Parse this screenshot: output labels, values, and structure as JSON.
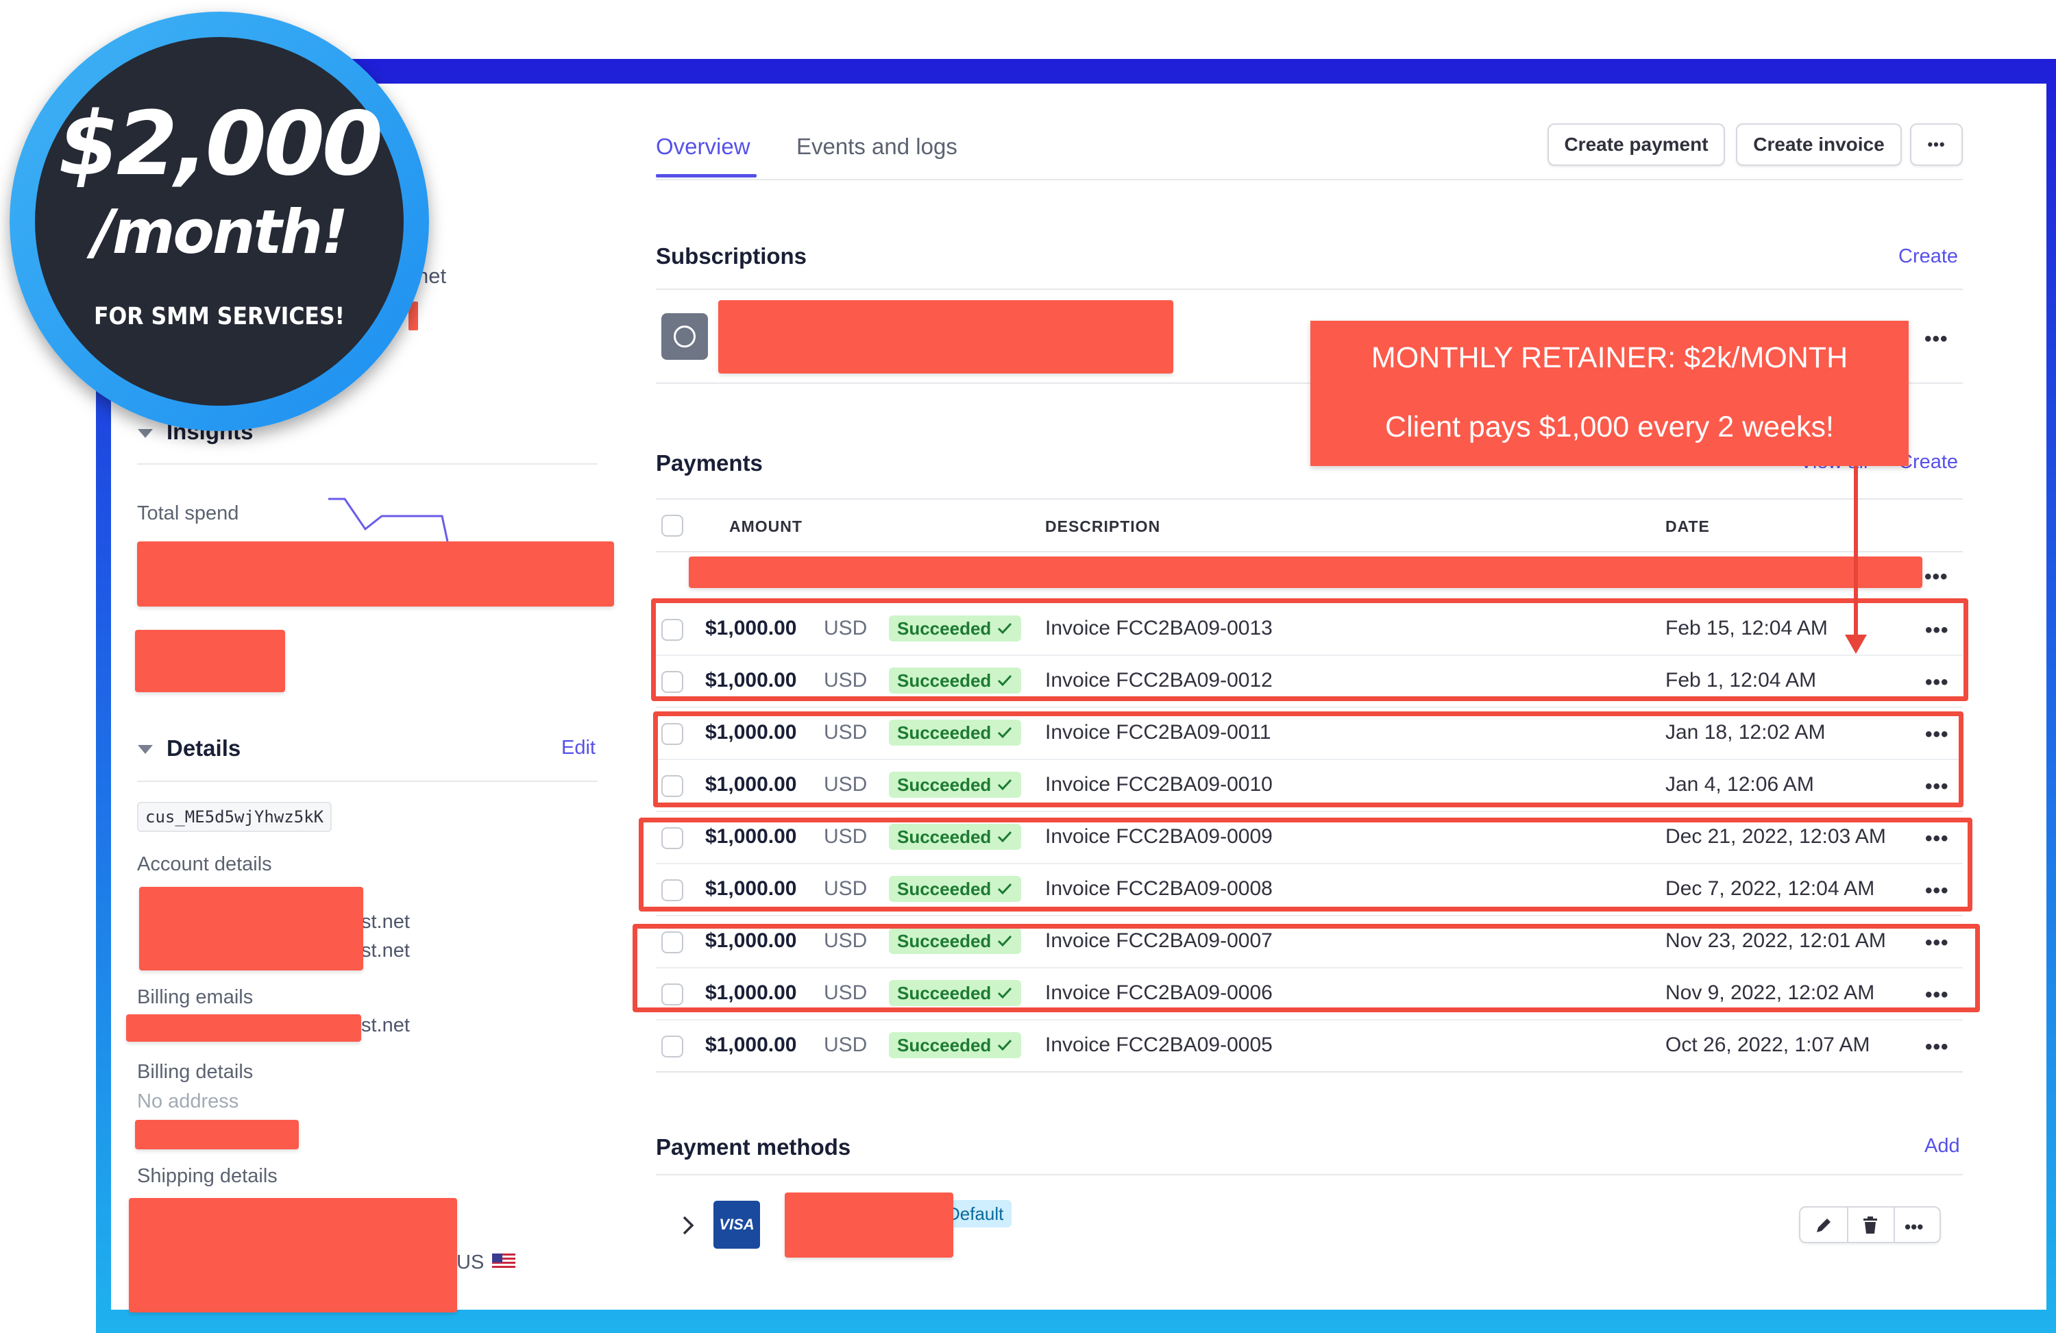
{
  "promo": {
    "amount": "$2,000",
    "period": "/month!",
    "subtitle": "FOR SMM SERVICES!"
  },
  "tabs": [
    {
      "label": "Overview",
      "active": true
    },
    {
      "label": "Events and logs",
      "active": false
    }
  ],
  "actions": {
    "create_payment": "Create payment",
    "create_invoice": "Create invoice",
    "more": "•••"
  },
  "subscriptions": {
    "title": "Subscriptions",
    "create": "Create",
    "more": "•••"
  },
  "callout": {
    "line1": "MONTHLY RETAINER: $2k/MONTH",
    "line2": "Client pays $1,000 every 2 weeks!"
  },
  "payments": {
    "title": "Payments",
    "view_all": "View all",
    "create": "Create",
    "columns": [
      "AMOUNT",
      "DESCRIPTION",
      "DATE"
    ],
    "rows": [
      {
        "amount": "$1,000.00",
        "currency": "USD",
        "status": "Succeeded",
        "description": "Invoice FCC2BA09-0013",
        "date": "Feb 15, 12:04 AM"
      },
      {
        "amount": "$1,000.00",
        "currency": "USD",
        "status": "Succeeded",
        "description": "Invoice FCC2BA09-0012",
        "date": "Feb 1, 12:04 AM"
      },
      {
        "amount": "$1,000.00",
        "currency": "USD",
        "status": "Succeeded",
        "description": "Invoice FCC2BA09-0011",
        "date": "Jan 18, 12:02 AM"
      },
      {
        "amount": "$1,000.00",
        "currency": "USD",
        "status": "Succeeded",
        "description": "Invoice FCC2BA09-0010",
        "date": "Jan 4, 12:06 AM"
      },
      {
        "amount": "$1,000.00",
        "currency": "USD",
        "status": "Succeeded",
        "description": "Invoice FCC2BA09-0009",
        "date": "Dec 21, 2022, 12:03 AM"
      },
      {
        "amount": "$1,000.00",
        "currency": "USD",
        "status": "Succeeded",
        "description": "Invoice FCC2BA09-0008",
        "date": "Dec 7, 2022, 12:04 AM"
      },
      {
        "amount": "$1,000.00",
        "currency": "USD",
        "status": "Succeeded",
        "description": "Invoice FCC2BA09-0007",
        "date": "Nov 23, 2022, 12:01 AM"
      },
      {
        "amount": "$1,000.00",
        "currency": "USD",
        "status": "Succeeded",
        "description": "Invoice FCC2BA09-0006",
        "date": "Nov 9, 2022, 12:02 AM"
      },
      {
        "amount": "$1,000.00",
        "currency": "USD",
        "status": "Succeeded",
        "description": "Invoice FCC2BA09-0005",
        "date": "Oct 26, 2022, 1:07 AM"
      }
    ]
  },
  "payment_methods": {
    "title": "Payment methods",
    "add": "Add",
    "card_brand": "VISA",
    "default_badge": "Default"
  },
  "sidebar": {
    "insights_title": "Insights",
    "total_spend_label": "Total spend",
    "details_title": "Details",
    "edit": "Edit",
    "customer_id": "cus_ME5d5wjYhwz5kK",
    "account_details_label": "Account details",
    "email_suffix_1": "st.net",
    "email_suffix_2": "st.net",
    "billing_emails_label": "Billing emails",
    "billing_email_suffix": "st.net",
    "billing_details_label": "Billing details",
    "no_address": "No address",
    "shipping_details_label": "Shipping details",
    "country": "US",
    "partial_top_text": "net"
  },
  "colors": {
    "accent": "#5651e8",
    "redaction": "#fc5a4b",
    "highlight": "#f04b3e",
    "success_bg": "#cdf5c9",
    "success_text": "#1d7a32",
    "frame_top": "#1f1fd8",
    "frame_bottom": "#1eb2ee"
  },
  "icons": {
    "status": "check-icon",
    "row_menu": "more-dots-icon",
    "expand": "chevron-right-icon",
    "edit": "pencil-icon",
    "delete": "trash-icon",
    "subscription": "circle-icon",
    "flag": "us-flag-icon"
  }
}
